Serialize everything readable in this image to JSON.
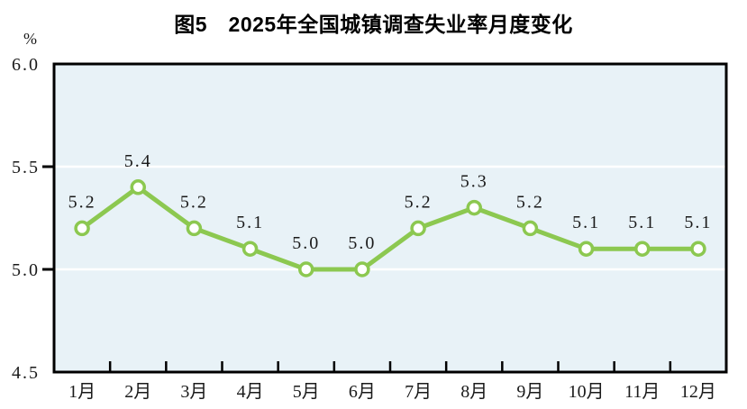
{
  "page": {
    "background": "#ffffff"
  },
  "chart_data": {
    "type": "line",
    "title": "图5　2025年全国城镇调查失业率月度变化",
    "categories": [
      "1月",
      "2月",
      "3月",
      "4月",
      "5月",
      "6月",
      "7月",
      "8月",
      "9月",
      "10月",
      "11月",
      "12月"
    ],
    "values": [
      5.2,
      5.4,
      5.2,
      5.1,
      5.0,
      5.0,
      5.2,
      5.3,
      5.2,
      5.1,
      5.1,
      5.1
    ],
    "data_labels": [
      "5.2",
      "5.4",
      "5.2",
      "5.1",
      "5.0",
      "5.0",
      "5.2",
      "5.3",
      "5.2",
      "5.1",
      "5.1",
      "5.1"
    ],
    "xlabel": "",
    "ylabel": "%",
    "ylim": [
      4.5,
      6.0
    ],
    "yticks": [
      4.5,
      5.0,
      5.5,
      6.0
    ],
    "ytick_labels": [
      "4.5",
      "5.0",
      "5.5",
      "6.0"
    ],
    "legend": "none",
    "grid": "horizontal-white-lines-at-interior-yticks",
    "marker": "open-circle",
    "colors": {
      "line": "#8cc850",
      "marker_fill": "#ffffff",
      "marker_stroke": "#8cc850",
      "plot_background": "#e8f2f7",
      "gridline": "#ffffff",
      "axis": "#000000",
      "text": "#1a1a1a",
      "page_background": "#ffffff"
    }
  }
}
